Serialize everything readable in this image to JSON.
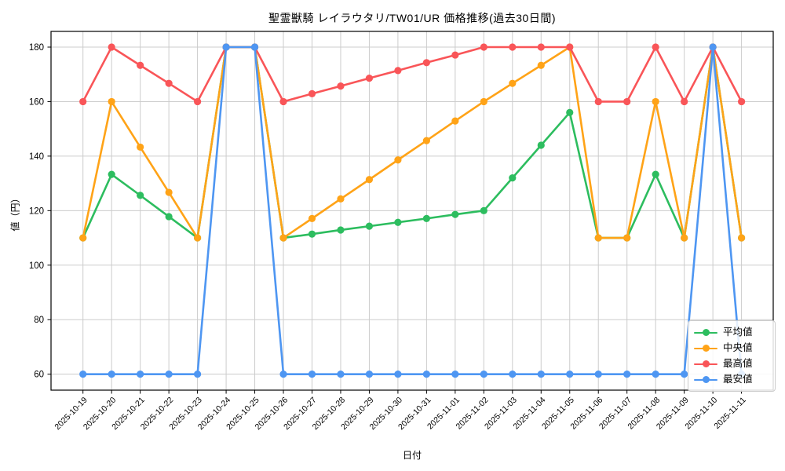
{
  "chart_data": {
    "type": "line",
    "title": "聖霊獣騎 レイラウタリ/TW01/UR 価格推移(過去30日間)",
    "xlabel": "日付",
    "ylabel": "値（円）",
    "grid": true,
    "legend_position": "lower right",
    "ylim": [
      53.4,
      185.8
    ],
    "yticks": [
      60,
      80,
      100,
      120,
      140,
      160,
      180
    ],
    "x": [
      "2025-10-19",
      "2025-10-20",
      "2025-10-21",
      "2025-10-22",
      "2025-10-23",
      "2025-10-24",
      "2025-10-25",
      "2025-10-26",
      "2025-10-27",
      "2025-10-28",
      "2025-10-29",
      "2025-10-30",
      "2025-10-31",
      "2025-11-01",
      "2025-11-02",
      "2025-11-03",
      "2025-11-04",
      "2025-11-05",
      "2025-11-06",
      "2025-11-07",
      "2025-11-08",
      "2025-11-09",
      "2025-11-10",
      "2025-11-11"
    ],
    "series": [
      {
        "key": "average",
        "name": "平均値",
        "color": "#2dbd5f",
        "values": [
          110,
          133.3,
          125.6,
          117.8,
          110,
          180,
          180,
          110,
          111.4,
          112.9,
          114.3,
          115.7,
          117.1,
          118.6,
          120,
          132,
          144,
          156,
          110,
          110,
          133.3,
          110,
          180,
          110
        ]
      },
      {
        "key": "median",
        "name": "中央値",
        "color": "#ffa317",
        "values": [
          110,
          160,
          143.3,
          126.7,
          110,
          180,
          180,
          110,
          117.1,
          124.3,
          131.4,
          138.6,
          145.7,
          152.9,
          160,
          166.7,
          173.3,
          180,
          110,
          110,
          160,
          110,
          180,
          110
        ]
      },
      {
        "key": "max",
        "name": "最高値",
        "color": "#f95558",
        "values": [
          160,
          180,
          173.3,
          166.7,
          160,
          180,
          180,
          160,
          162.9,
          165.7,
          168.6,
          171.4,
          174.3,
          177.1,
          180,
          180,
          180,
          180,
          160,
          160,
          180,
          160,
          180,
          160
        ]
      },
      {
        "key": "min",
        "name": "最安値",
        "color": "#4e96f2",
        "values": [
          60,
          60,
          60,
          60,
          60,
          180,
          180,
          60,
          60,
          60,
          60,
          60,
          60,
          60,
          60,
          60,
          60,
          60,
          60,
          60,
          60,
          60,
          180,
          60
        ]
      }
    ]
  },
  "style": {
    "grid_color": "#cccccc",
    "axis_color": "#000000",
    "tick_label_color": "#000000"
  }
}
